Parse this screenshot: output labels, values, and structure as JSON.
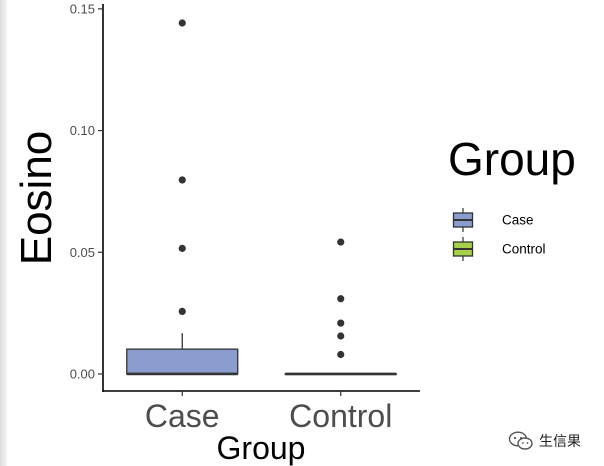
{
  "chart_data": {
    "type": "box",
    "title": "",
    "xlabel": "Group",
    "ylabel": "Eosino",
    "categories": [
      "Case",
      "Control"
    ],
    "ylim": [
      -0.007,
      0.152
    ],
    "yticks": [
      0.0,
      0.05,
      0.1,
      0.15
    ],
    "ytick_labels": [
      "0.00",
      "0.05",
      "0.10",
      "0.15"
    ],
    "grid": false,
    "legend": {
      "title": "Group",
      "placement": "right",
      "entries": [
        "Case",
        "Control"
      ]
    },
    "series": [
      {
        "name": "Case",
        "color": "#8b9dcf",
        "box": {
          "whisker_low": 0.0,
          "q1": 0.0,
          "median": 0.0,
          "q3": 0.0102,
          "whisker_high": 0.0168
        },
        "outliers": [
          0.0257,
          0.0516,
          0.0797,
          0.1442
        ]
      },
      {
        "name": "Control",
        "color": "#a6cf4a",
        "box": {
          "whisker_low": 0.0,
          "q1": 0.0,
          "median": 0.0,
          "q3": 0.0,
          "whisker_high": 0.0
        },
        "outliers": [
          0.008,
          0.0156,
          0.0209,
          0.0309,
          0.0542
        ]
      }
    ]
  },
  "watermark": {
    "icon": "wechat-icon",
    "text": "生信果"
  }
}
